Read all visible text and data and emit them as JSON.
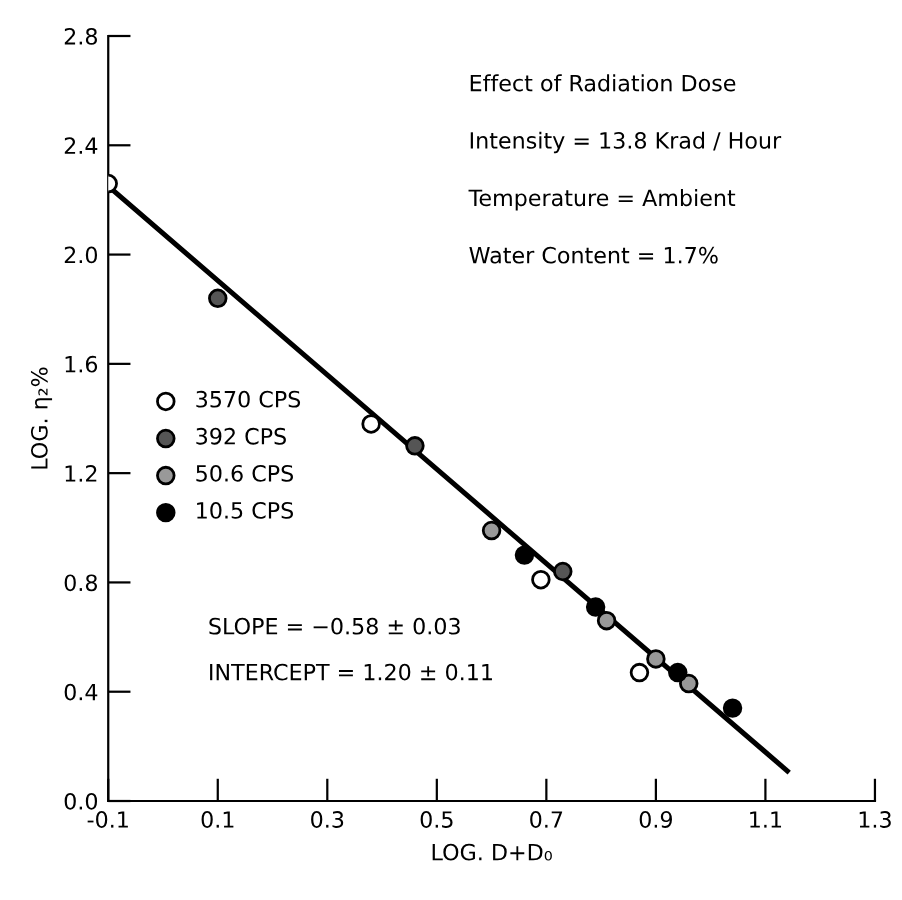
{
  "chart_data": {
    "type": "scatter",
    "xlabel": "LOG. D+D₀",
    "ylabel": "LOG. η₂%",
    "xlim": [
      -0.1,
      1.3
    ],
    "ylim": [
      0,
      2.8
    ],
    "xticks": [
      -0.1,
      0.1,
      0.3,
      0.5,
      0.7,
      0.9,
      1.1,
      1.3
    ],
    "yticks": [
      {
        "value": 0,
        "label": "0.0"
      },
      {
        "value": 0.4,
        "label": "0.4"
      },
      {
        "value": 0.8,
        "label": "0.8"
      },
      {
        "value": 1.2,
        "label": "1.2"
      },
      {
        "value": 1.6,
        "label": "1.6"
      },
      {
        "value": 2.0,
        "label": "2.0"
      },
      {
        "value": 2.4,
        "label": "2.4"
      },
      {
        "value": 2.8,
        "label": "2.8"
      }
    ],
    "marker": "circle",
    "grid": false,
    "legend": "left",
    "series": [
      {
        "name": "3570 CPS",
        "color": "#ffffff",
        "x": [
          -0.1,
          0.38,
          0.69,
          0.87
        ],
        "values": [
          2.26,
          1.38,
          0.81,
          0.47
        ]
      },
      {
        "name": "392 CPS",
        "color": "#555555",
        "x": [
          0.1,
          0.46,
          0.73
        ],
        "values": [
          1.84,
          1.3,
          0.84
        ]
      },
      {
        "name": "50.6 CPS",
        "color": "#999999",
        "x": [
          0.6,
          0.81,
          0.9,
          0.96
        ],
        "values": [
          0.99,
          0.66,
          0.52,
          0.43
        ]
      },
      {
        "name": "10.5 CPS",
        "color": "#000000",
        "x": [
          0.66,
          0.79,
          0.94,
          1.04
        ],
        "values": [
          0.9,
          0.71,
          0.47,
          0.34
        ]
      },
      {
        "type": "line",
        "marker": "none",
        "color": "#000000",
        "x": [
          -0.1,
          1.14
        ],
        "values": [
          2.25,
          0.11
        ]
      }
    ],
    "annotations": [
      "Effect of Radiation Dose",
      "Intensity = 13.8 Krad / Hour",
      "Temperature = Ambient",
      "Water Content = 1.7%",
      "SLOPE = −0.58 ± 0.03",
      "INTERCEPT = 1.20 ± 0.11"
    ]
  }
}
